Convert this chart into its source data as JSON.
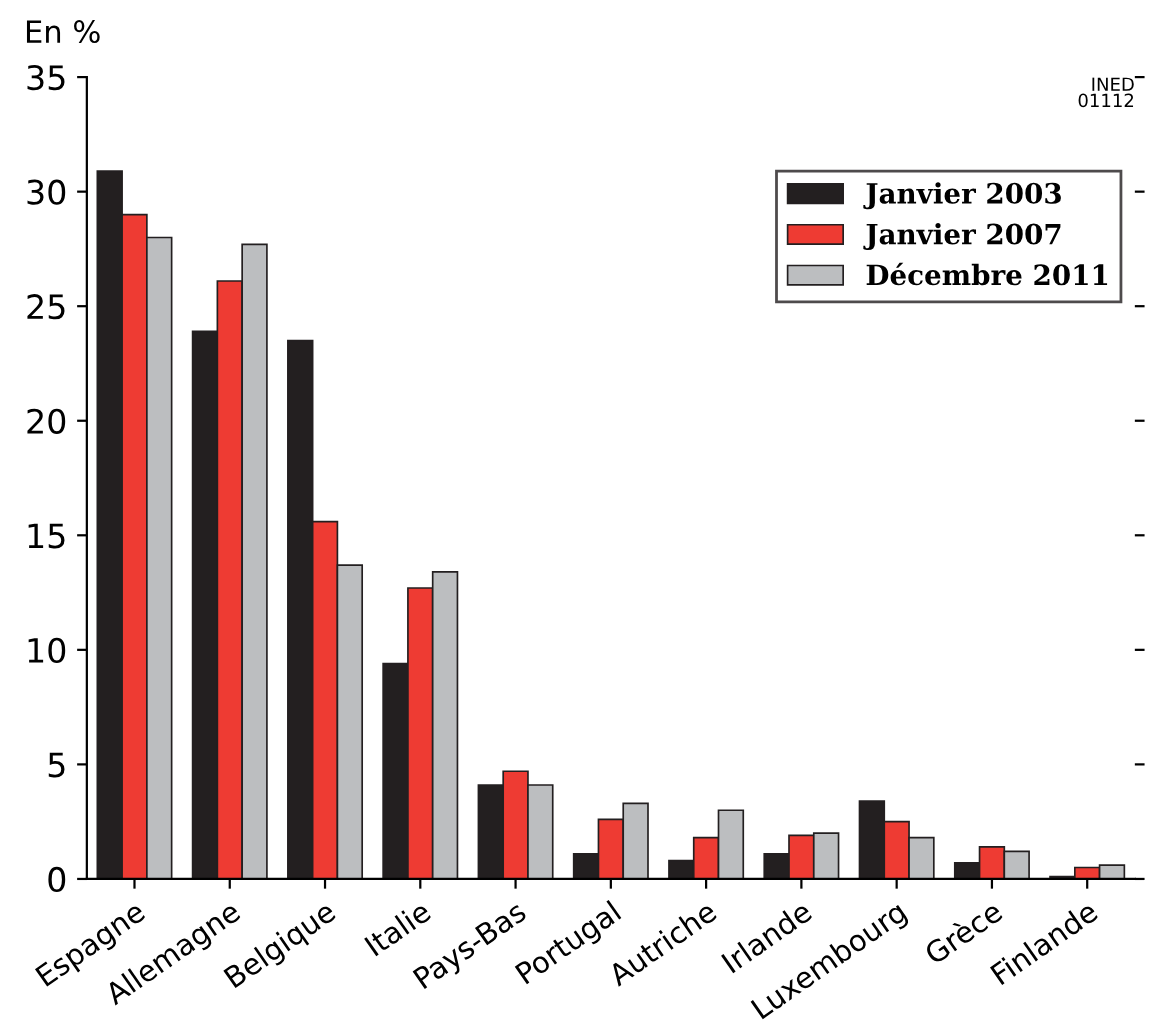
{
  "chart_data": {
    "type": "bar",
    "ylabel": "En %",
    "categories": [
      "Espagne",
      "Allemagne",
      "Belgique",
      "Italie",
      "Pays-Bas",
      "Portugal",
      "Autriche",
      "Irlande",
      "Luxembourg",
      "Grèce",
      "Finlande"
    ],
    "series": [
      {
        "name": "Janvier 2003",
        "color": "#231f20",
        "values": [
          30.9,
          23.9,
          23.5,
          9.4,
          4.1,
          1.1,
          0.8,
          1.1,
          3.4,
          0.7,
          0.1
        ]
      },
      {
        "name": "Janvier 2007",
        "color": "#ee3b33",
        "values": [
          29.0,
          26.1,
          15.6,
          12.7,
          4.7,
          2.6,
          1.8,
          1.9,
          2.5,
          1.4,
          0.5
        ]
      },
      {
        "name": "Décembre 2011",
        "color": "#bcbec0",
        "values": [
          28.0,
          27.7,
          13.7,
          13.4,
          4.1,
          3.3,
          3.0,
          2.0,
          1.8,
          1.2,
          0.6
        ]
      }
    ],
    "ylim": [
      0,
      35
    ],
    "yticks": [
      0,
      5,
      10,
      15,
      20,
      25,
      30,
      35
    ],
    "grid": false,
    "legend": "top right",
    "annotations": [
      "INED\n01112"
    ]
  }
}
